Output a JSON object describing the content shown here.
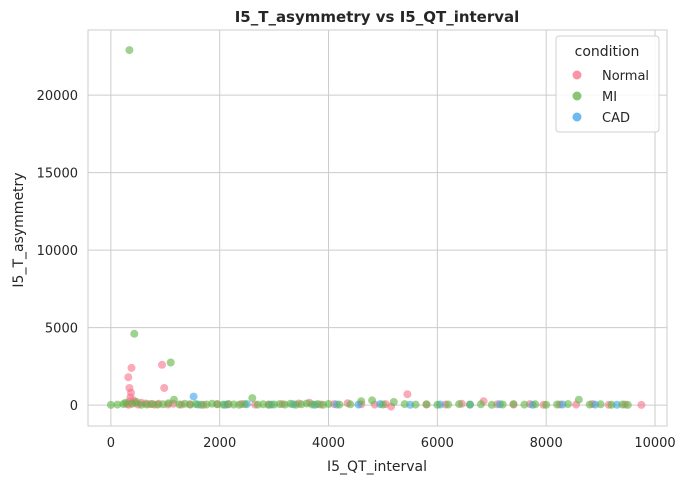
{
  "chart_data": {
    "type": "scatter",
    "title": "I5_T_asymmetry vs I5_QT_interval",
    "xlabel": "I5_QT_interval",
    "ylabel": "I5_T_asymmetry",
    "xlim": [
      -420,
      10220
    ],
    "ylim": [
      -1350,
      24200
    ],
    "xticks": [
      0,
      2000,
      4000,
      6000,
      8000,
      10000
    ],
    "yticks": [
      0,
      5000,
      10000,
      15000,
      20000
    ],
    "grid": true,
    "legend": {
      "title": "condition",
      "placement": "top-right"
    },
    "series": [
      {
        "name": "Normal",
        "color": "#f77189",
        "points": [
          [
            330,
            20
          ],
          [
            350,
            250
          ],
          [
            360,
            500
          ],
          [
            370,
            800
          ],
          [
            340,
            1100
          ],
          [
            320,
            1800
          ],
          [
            380,
            2400
          ],
          [
            420,
            300
          ],
          [
            450,
            120
          ],
          [
            300,
            60
          ],
          [
            500,
            40
          ],
          [
            560,
            150
          ],
          [
            640,
            100
          ],
          [
            720,
            60
          ],
          [
            800,
            30
          ],
          [
            880,
            90
          ],
          [
            940,
            2600
          ],
          [
            980,
            1100
          ],
          [
            1050,
            40
          ],
          [
            1150,
            80
          ],
          [
            1300,
            30
          ],
          [
            1450,
            50
          ],
          [
            1700,
            20
          ],
          [
            1950,
            60
          ],
          [
            2150,
            40
          ],
          [
            2400,
            70
          ],
          [
            2650,
            30
          ],
          [
            2900,
            40
          ],
          [
            3150,
            60
          ],
          [
            3450,
            100
          ],
          [
            3650,
            150
          ],
          [
            3850,
            40
          ],
          [
            4100,
            60
          ],
          [
            4350,
            120
          ],
          [
            4600,
            50
          ],
          [
            4850,
            30
          ],
          [
            5050,
            60
          ],
          [
            5150,
            -100
          ],
          [
            5450,
            700
          ],
          [
            5800,
            30
          ],
          [
            6150,
            40
          ],
          [
            6450,
            80
          ],
          [
            6850,
            250
          ],
          [
            7100,
            50
          ],
          [
            7400,
            30
          ],
          [
            7700,
            60
          ],
          [
            7950,
            20
          ],
          [
            8250,
            40
          ],
          [
            8550,
            30
          ],
          [
            8850,
            60
          ],
          [
            9150,
            20
          ],
          [
            9450,
            40
          ],
          [
            9750,
            10
          ]
        ]
      },
      {
        "name": "MI",
        "color": "#5fb445",
        "points": [
          [
            340,
            22900
          ],
          [
            430,
            4600
          ],
          [
            1100,
            2750
          ],
          [
            0,
            10
          ],
          [
            120,
            30
          ],
          [
            230,
            60
          ],
          [
            270,
            150
          ],
          [
            390,
            80
          ],
          [
            470,
            200
          ],
          [
            560,
            20
          ],
          [
            660,
            40
          ],
          [
            760,
            70
          ],
          [
            860,
            30
          ],
          [
            960,
            50
          ],
          [
            1060,
            120
          ],
          [
            1160,
            350
          ],
          [
            1260,
            40
          ],
          [
            1360,
            80
          ],
          [
            1460,
            30
          ],
          [
            1560,
            60
          ],
          [
            1660,
            20
          ],
          [
            1760,
            40
          ],
          [
            1860,
            90
          ],
          [
            1960,
            50
          ],
          [
            2060,
            30
          ],
          [
            2160,
            70
          ],
          [
            2260,
            40
          ],
          [
            2360,
            20
          ],
          [
            2460,
            60
          ],
          [
            2600,
            450
          ],
          [
            2700,
            30
          ],
          [
            2800,
            50
          ],
          [
            2900,
            20
          ],
          [
            3000,
            40
          ],
          [
            3100,
            60
          ],
          [
            3200,
            30
          ],
          [
            3300,
            80
          ],
          [
            3400,
            20
          ],
          [
            3500,
            50
          ],
          [
            3600,
            100
          ],
          [
            3700,
            40
          ],
          [
            3800,
            60
          ],
          [
            3900,
            20
          ],
          [
            4000,
            70
          ],
          [
            4200,
            30
          ],
          [
            4400,
            50
          ],
          [
            4600,
            250
          ],
          [
            4800,
            300
          ],
          [
            5000,
            40
          ],
          [
            5200,
            200
          ],
          [
            5400,
            60
          ],
          [
            5600,
            30
          ],
          [
            5800,
            50
          ],
          [
            6000,
            20
          ],
          [
            6200,
            40
          ],
          [
            6400,
            60
          ],
          [
            6600,
            30
          ],
          [
            6800,
            50
          ],
          [
            7000,
            20
          ],
          [
            7200,
            40
          ],
          [
            7400,
            60
          ],
          [
            7600,
            30
          ],
          [
            7800,
            50
          ],
          [
            8000,
            20
          ],
          [
            8200,
            40
          ],
          [
            8400,
            60
          ],
          [
            8600,
            350
          ],
          [
            8800,
            30
          ],
          [
            9000,
            50
          ],
          [
            9200,
            20
          ],
          [
            9400,
            40
          ],
          [
            9500,
            10
          ]
        ]
      },
      {
        "name": "CAD",
        "color": "#3ba3ec",
        "points": [
          [
            1520,
            550
          ],
          [
            1600,
            40
          ],
          [
            2100,
            20
          ],
          [
            2500,
            60
          ],
          [
            2950,
            30
          ],
          [
            3350,
            50
          ],
          [
            3750,
            20
          ],
          [
            4150,
            40
          ],
          [
            4550,
            30
          ],
          [
            4950,
            60
          ],
          [
            5500,
            20
          ],
          [
            6050,
            40
          ],
          [
            6600,
            30
          ],
          [
            7150,
            50
          ],
          [
            7750,
            20
          ],
          [
            8300,
            40
          ],
          [
            8900,
            30
          ],
          [
            9300,
            20
          ]
        ]
      }
    ]
  }
}
